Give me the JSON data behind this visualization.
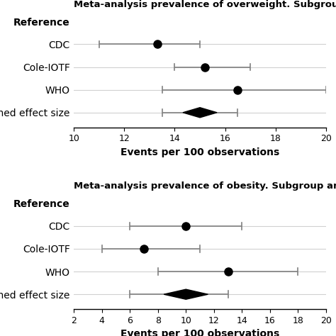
{
  "overweight": {
    "title": "Meta-analysis prevalence of overweight. Subgroup analysis",
    "xlabel": "Events per 100 observations",
    "xlim": [
      10,
      20
    ],
    "xticks": [
      10,
      12,
      14,
      16,
      18,
      20
    ],
    "categories": [
      "Reference",
      "CDC",
      "Cole-IOTF",
      "WHO",
      "Combined effect size"
    ],
    "centers": [
      null,
      13.3,
      15.2,
      16.5,
      15.0
    ],
    "ci_low": [
      null,
      11.0,
      14.0,
      13.5,
      13.5
    ],
    "ci_high": [
      null,
      15.0,
      17.0,
      20.0,
      16.5
    ],
    "is_diamond": [
      false,
      false,
      false,
      false,
      true
    ]
  },
  "obesity": {
    "title": "Meta-analysis prevalence of obesity. Subgroup analysis",
    "xlabel": "Events per 100 observations",
    "xlim": [
      2,
      20
    ],
    "xticks": [
      2,
      4,
      6,
      8,
      10,
      12,
      14,
      16,
      18,
      20
    ],
    "categories": [
      "Reference",
      "CDC",
      "Cole-IOTF",
      "WHO",
      "Combined effect size"
    ],
    "centers": [
      null,
      10.0,
      7.0,
      13.0,
      10.0
    ],
    "ci_low": [
      null,
      6.0,
      4.0,
      8.0,
      6.0
    ],
    "ci_high": [
      null,
      14.0,
      11.0,
      18.0,
      13.0
    ],
    "is_diamond": [
      false,
      false,
      false,
      false,
      true
    ]
  },
  "bg_color": "#ffffff",
  "text_color": "#000000",
  "marker_color": "#000000",
  "line_color": "#808080",
  "grid_color": "#d0d0d0",
  "title_fontsize": 9.5,
  "label_fontsize": 10,
  "tick_fontsize": 9,
  "category_fontsize": 10
}
